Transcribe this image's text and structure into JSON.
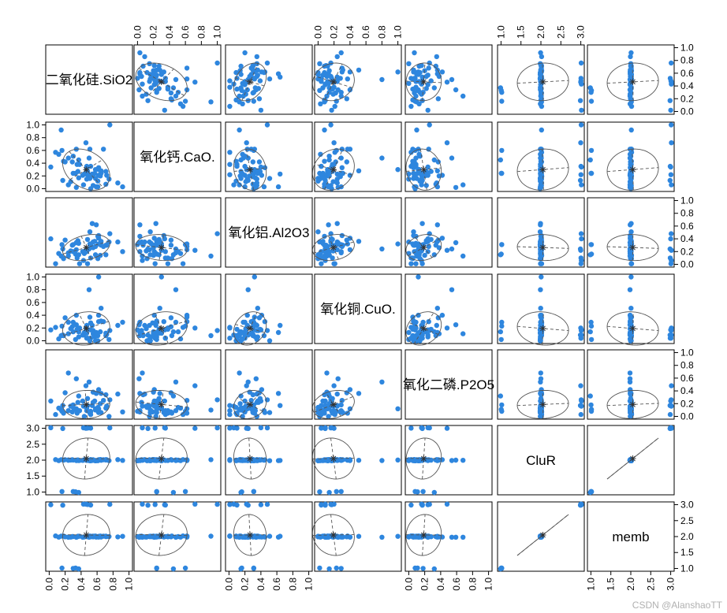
{
  "chart_data": {
    "type": "scatter",
    "title": "",
    "variables": [
      "二氧化硅.SiO2",
      "氧化钙.CaO.",
      "氧化铝.Al2O3",
      "氧化铜.CuO.",
      "氧化二磷.P2O5",
      "CluR",
      "memb"
    ],
    "diagonal_labels": [
      "二氧化硅.SiO2",
      "氧化钙.CaO.",
      "氧化铝.Al2O3",
      "氧化铜.CuO.",
      "氧化二磷.P2O5",
      "CluR",
      "memb"
    ],
    "tick_labels_unit": [
      "0.0",
      "0.2",
      "0.4",
      "0.6",
      "0.8",
      "1.0"
    ],
    "tick_labels_clu": [
      "1.0",
      "1.5",
      "2.0",
      "2.5",
      "3.0"
    ],
    "ranges": [
      [
        0,
        1
      ],
      [
        0,
        1
      ],
      [
        0,
        1
      ],
      [
        0,
        1
      ],
      [
        0,
        1
      ],
      [
        1,
        3
      ],
      [
        1,
        3
      ]
    ],
    "means": [
      0.5,
      0.29,
      0.27,
      0.18,
      0.18,
      2.05,
      2.05
    ],
    "point_color": "#2e86de",
    "samples": {
      "SiO2": [
        0.62,
        0.58,
        0.52,
        0.55,
        0.61,
        0.38,
        0.12,
        0.33,
        0.51,
        0.62,
        0.43,
        0.24,
        0.29,
        0.18,
        0.72,
        0.92,
        0.15,
        0.36,
        0.08,
        0.52,
        0.47,
        0.37,
        0.34,
        0.48,
        0.51,
        0.71,
        0.44,
        0.2,
        0.35,
        0.42,
        0.55,
        0.3,
        0.61,
        0.75,
        0.54,
        0.86,
        0.64,
        0.59,
        0.02,
        0.58,
        0.47,
        0.47,
        0.17,
        0.52,
        0.65,
        0.5,
        0.24,
        0.3,
        0.48,
        0.57,
        0.68,
        0.76,
        0.27,
        0.16,
        0.46,
        0.34,
        0.37,
        0.65,
        0.62,
        0.71
      ],
      "CaO": [
        0.21,
        0.3,
        0.0,
        0.05,
        0.12,
        0.38,
        0.54,
        0.24,
        0.62,
        0.33,
        0.06,
        0.48,
        0.42,
        0.43,
        0.21,
        0.03,
        0.92,
        0.27,
        0.57,
        0.35,
        0.15,
        0.45,
        0.62,
        0.22,
        0.16,
        0.27,
        0.23,
        0.42,
        0.38,
        0.21,
        0.2,
        0.51,
        0.03,
        0.15,
        0.23,
        0.09,
        0.2,
        0.03,
        0.34,
        0.16,
        0.35,
        0.3,
        0.13,
        0.19,
        0.24,
        0.48,
        0.06,
        0.24,
        0.27,
        0.24,
        0.62,
        1.0,
        0.11,
        0.6,
        0.72,
        0.02,
        0.17,
        0.28,
        0.3,
        0.07
      ],
      "Al2O3": [
        0.41,
        0.28,
        0.31,
        0.35,
        0.09,
        0.01,
        0.17,
        0.16,
        0.32,
        0.45,
        0.06,
        0.18,
        0.3,
        0.09,
        0.3,
        0.2,
        0.13,
        0.37,
        0.01,
        0.1,
        0.23,
        0.15,
        0.23,
        0.01,
        0.51,
        0.15,
        0.17,
        0.38,
        0.1,
        0.2,
        0.26,
        0.2,
        0.44,
        0.35,
        0.64,
        0.35,
        0.14,
        0.62,
        0.4,
        0.15,
        0.2,
        0.22,
        0.24,
        0.3,
        0.3,
        0.24,
        0.13,
        0.31,
        0.39,
        0.36,
        0.28,
        0.48,
        0.21,
        0.31,
        0.22,
        0.34,
        0.33,
        0.36,
        0.32,
        0.3
      ],
      "CuO": [
        0.4,
        0.12,
        0.17,
        0.16,
        0.0,
        0.2,
        0.03,
        0.02,
        0.37,
        0.3,
        0.09,
        0.29,
        0.22,
        0.08,
        0.1,
        0.29,
        0.08,
        0.16,
        0.21,
        0.04,
        0.24,
        0.14,
        0.4,
        0.04,
        0.0,
        0.12,
        0.13,
        0.36,
        0.18,
        0.09,
        0.11,
        0.14,
        0.08,
        0.02,
        0.24,
        0.24,
        0.14,
        0.13,
        0.17,
        0.0,
        0.04,
        0.12,
        0.09,
        0.28,
        0.31,
        0.8,
        0.11,
        0.29,
        0.18,
        0.06,
        0.3,
        0.16,
        0.19,
        0.23,
        0.2,
        0.25,
        0.06,
        0.51,
        1.0,
        0.08
      ],
      "P2O5": [
        0.42,
        0.12,
        0.08,
        0.22,
        0.14,
        0.09,
        0.13,
        0.11,
        0.05,
        0.06,
        0.16,
        0.09,
        0.07,
        0.05,
        0.16,
        0.07,
        0.1,
        0.22,
        0.03,
        0.03,
        0.16,
        0.32,
        0.12,
        0.17,
        0.06,
        0.13,
        0.0,
        0.37,
        0.05,
        0.24,
        0.38,
        0.14,
        0.09,
        0.0,
        0.17,
        0.35,
        0.2,
        0.36,
        0.24,
        0.1,
        0.09,
        0.13,
        0.17,
        0.07,
        0.06,
        0.54,
        0.68,
        0.18,
        0.28,
        0.24,
        0.25,
        0.26,
        0.16,
        0.08,
        0.48,
        0.59,
        0.09,
        0.36,
        0.12,
        0.34
      ],
      "CluR": [
        2,
        2,
        2,
        2,
        2,
        2,
        2,
        1,
        2,
        2,
        3,
        2,
        2,
        2,
        2,
        2,
        2,
        2,
        2,
        3,
        2,
        1,
        2,
        3,
        2,
        2,
        2,
        2,
        2,
        2,
        2,
        2,
        2,
        2,
        2,
        2,
        2,
        2,
        3,
        2,
        2,
        2,
        3,
        2,
        2,
        2,
        2,
        1,
        2,
        2,
        2,
        3,
        2,
        1,
        3,
        2,
        2,
        2,
        2,
        2
      ],
      "memb": [
        2,
        2,
        2,
        2,
        2,
        2,
        2,
        1,
        2,
        2,
        3,
        2,
        2,
        2,
        2,
        2,
        2,
        2,
        2,
        3,
        2,
        1,
        2,
        3,
        2,
        2,
        2,
        2,
        2,
        2,
        2,
        2,
        2,
        2,
        2,
        2,
        2,
        2,
        3,
        2,
        2,
        2,
        3,
        2,
        2,
        2,
        2,
        1,
        2,
        2,
        2,
        3,
        2,
        1,
        3,
        2,
        2,
        2,
        2,
        2
      ]
    }
  },
  "watermark": "CSDN @AlanshaoTT"
}
